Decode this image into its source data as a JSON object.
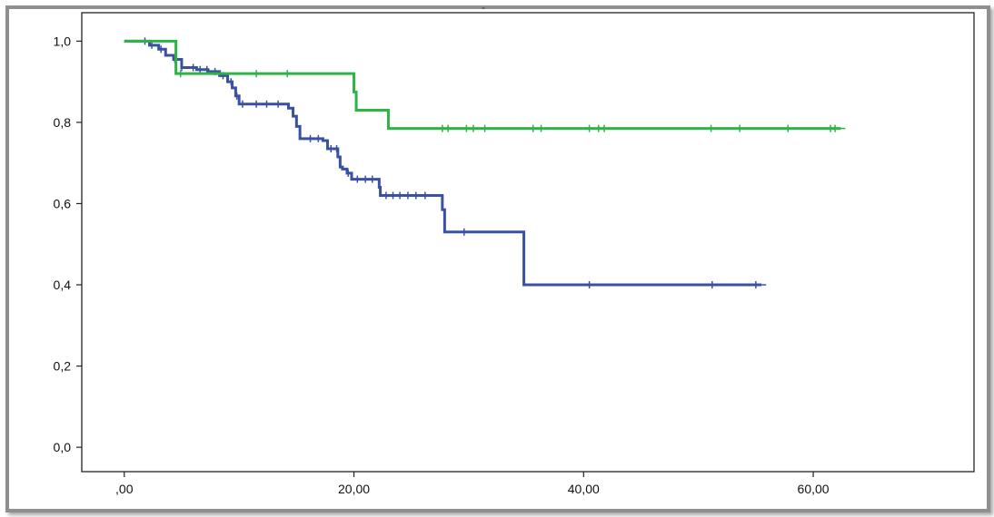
{
  "chart_data": {
    "type": "line",
    "title": "",
    "xlabel": "",
    "ylabel": "",
    "xlim": [
      -3.7,
      74
    ],
    "ylim": [
      -0.06,
      1.07
    ],
    "x_ticks": [
      0,
      20,
      40,
      60
    ],
    "x_tick_labels": [
      ",00",
      "20,00",
      "40,00",
      "60,00"
    ],
    "y_ticks": [
      0.0,
      0.2,
      0.4,
      0.6,
      0.8,
      1.0
    ],
    "y_tick_labels": [
      "0,0",
      "0,2",
      "0,4",
      "0,6",
      "0,8",
      "1,0"
    ],
    "grid": false,
    "step": true,
    "series": [
      {
        "color": "#3a50a2",
        "line_width": 3,
        "points": [
          [
            0,
            1.0
          ],
          [
            2.2,
            0.99
          ],
          [
            3.0,
            0.98
          ],
          [
            3.6,
            0.965
          ],
          [
            4.3,
            0.955
          ],
          [
            5.0,
            0.935
          ],
          [
            6.3,
            0.93
          ],
          [
            7.3,
            0.925
          ],
          [
            8.3,
            0.915
          ],
          [
            9.0,
            0.9
          ],
          [
            9.4,
            0.885
          ],
          [
            9.7,
            0.865
          ],
          [
            10.0,
            0.845
          ],
          [
            14.3,
            0.835
          ],
          [
            14.7,
            0.815
          ],
          [
            15.0,
            0.79
          ],
          [
            15.3,
            0.76
          ],
          [
            17.3,
            0.755
          ],
          [
            17.7,
            0.735
          ],
          [
            18.6,
            0.715
          ],
          [
            18.8,
            0.69
          ],
          [
            19.0,
            0.685
          ],
          [
            19.4,
            0.675
          ],
          [
            19.8,
            0.66
          ],
          [
            22.2,
            0.64
          ],
          [
            22.3,
            0.62
          ],
          [
            27.7,
            0.585
          ],
          [
            27.9,
            0.53
          ],
          [
            34.8,
            0.4
          ],
          [
            55.5,
            0.4
          ]
        ],
        "censored": [
          1.8,
          2.4,
          3.2,
          4.4,
          5.0,
          6.0,
          6.6,
          7.2,
          7.9,
          8.6,
          9.3,
          9.8,
          10.3,
          11.5,
          12.4,
          13.4,
          16.2,
          16.9,
          18.0,
          18.5,
          19.5,
          20.3,
          21.0,
          21.6,
          22.8,
          23.4,
          24.0,
          24.7,
          25.4,
          26.2,
          29.6,
          40.5,
          51.2,
          55.0
        ]
      },
      {
        "color": "#2eb345",
        "line_width": 3,
        "points": [
          [
            0,
            1.0
          ],
          [
            4.0,
            1.0
          ],
          [
            4.5,
            0.92
          ],
          [
            19.8,
            0.92
          ],
          [
            20.0,
            0.875
          ],
          [
            20.2,
            0.83
          ],
          [
            23.0,
            0.785
          ],
          [
            62.4,
            0.785
          ]
        ],
        "censored": [
          4.9,
          11.5,
          14.2,
          27.7,
          28.2,
          29.8,
          30.4,
          31.4,
          35.6,
          36.3,
          40.5,
          41.3,
          41.8,
          51.1,
          53.6,
          57.8,
          61.5,
          61.9
        ]
      }
    ],
    "header_fragment": "‐"
  }
}
